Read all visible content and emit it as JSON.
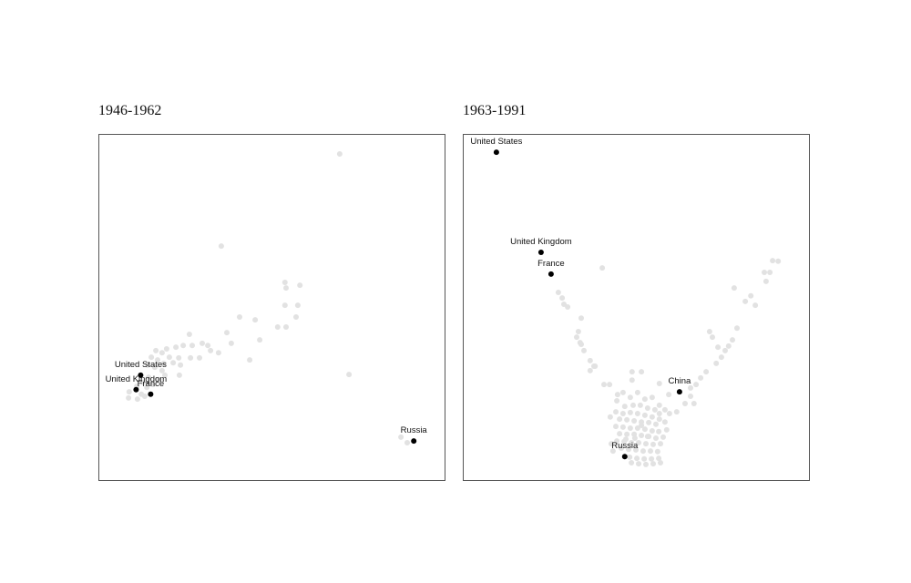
{
  "chart_data": [
    {
      "type": "scatter",
      "title": "1946-1962",
      "xlim": [
        0,
        100
      ],
      "ylim": [
        0,
        100
      ],
      "grid": false,
      "background_color": "#e2e2e2",
      "highlight_color": "#000000",
      "highlighted": [
        {
          "label": "United States",
          "x": 12.2,
          "y": 30.3
        },
        {
          "label": "United Kingdom",
          "x": 10.9,
          "y": 26.1
        },
        {
          "label": "France",
          "x": 15.1,
          "y": 24.8
        },
        {
          "label": "Russia",
          "x": 91.1,
          "y": 11.3
        }
      ],
      "background_points": [
        [
          69.7,
          94.2
        ],
        [
          35.5,
          67.6
        ],
        [
          53.9,
          57.1
        ],
        [
          54.2,
          55.5
        ],
        [
          58.2,
          56.3
        ],
        [
          53.9,
          50.5
        ],
        [
          57.6,
          50.5
        ],
        [
          40.8,
          47.1
        ],
        [
          45.3,
          46.3
        ],
        [
          57.1,
          47.1
        ],
        [
          51.8,
          44.2
        ],
        [
          54.2,
          44.2
        ],
        [
          37.1,
          42.6
        ],
        [
          46.6,
          40.5
        ],
        [
          26.3,
          42.1
        ],
        [
          38.4,
          39.5
        ],
        [
          24.5,
          38.9
        ],
        [
          27.1,
          38.9
        ],
        [
          30.0,
          39.5
        ],
        [
          31.6,
          38.9
        ],
        [
          19.7,
          37.9
        ],
        [
          22.4,
          38.4
        ],
        [
          32.4,
          37.4
        ],
        [
          34.7,
          36.8
        ],
        [
          16.6,
          37.4
        ],
        [
          18.4,
          36.8
        ],
        [
          20.5,
          35.5
        ],
        [
          23.2,
          35.3
        ],
        [
          26.6,
          35.3
        ],
        [
          29.2,
          35.3
        ],
        [
          15.3,
          35.5
        ],
        [
          17.1,
          34.7
        ],
        [
          18.9,
          33.7
        ],
        [
          21.6,
          33.9
        ],
        [
          23.7,
          33.2
        ],
        [
          14.2,
          33.2
        ],
        [
          16.3,
          32.6
        ],
        [
          18.4,
          31.6
        ],
        [
          19.2,
          30.3
        ],
        [
          23.4,
          30.3
        ],
        [
          14.5,
          29.7
        ],
        [
          17.4,
          29.0
        ],
        [
          12.9,
          28.2
        ],
        [
          15.8,
          27.6
        ],
        [
          11.1,
          27.1
        ],
        [
          14.0,
          26.8
        ],
        [
          8.9,
          25.5
        ],
        [
          12.4,
          24.8
        ],
        [
          8.7,
          23.7
        ],
        [
          11.3,
          23.4
        ],
        [
          13.4,
          24.2
        ],
        [
          43.7,
          34.7
        ],
        [
          72.4,
          30.5
        ],
        [
          87.4,
          12.4
        ],
        [
          89.2,
          10.8
        ]
      ]
    },
    {
      "type": "scatter",
      "title": "1963-1991",
      "xlim": [
        0,
        100
      ],
      "ylim": [
        0,
        100
      ],
      "grid": false,
      "background_color": "#e2e2e2",
      "highlight_color": "#000000",
      "highlighted": [
        {
          "label": "United States",
          "x": 9.7,
          "y": 94.7
        },
        {
          "label": "United Kingdom",
          "x": 22.6,
          "y": 65.8
        },
        {
          "label": "France",
          "x": 25.5,
          "y": 59.5
        },
        {
          "label": "China",
          "x": 62.6,
          "y": 25.5
        },
        {
          "label": "Russia",
          "x": 46.8,
          "y": 6.8
        }
      ],
      "background_points": [
        [
          40.3,
          61.3
        ],
        [
          27.6,
          54.2
        ],
        [
          28.7,
          52.6
        ],
        [
          29.2,
          50.8
        ],
        [
          30.3,
          50.0
        ],
        [
          34.2,
          46.8
        ],
        [
          33.4,
          42.9
        ],
        [
          32.9,
          41.3
        ],
        [
          33.9,
          39.7
        ],
        [
          35.0,
          37.4
        ],
        [
          34.2,
          39.2
        ],
        [
          36.8,
          34.5
        ],
        [
          38.2,
          32.9
        ],
        [
          36.8,
          31.6
        ],
        [
          37.9,
          32.9
        ],
        [
          40.8,
          27.6
        ],
        [
          42.4,
          27.6
        ],
        [
          48.9,
          31.3
        ],
        [
          51.6,
          31.3
        ],
        [
          56.8,
          27.9
        ],
        [
          65.8,
          26.6
        ],
        [
          67.4,
          27.6
        ],
        [
          68.7,
          29.5
        ],
        [
          70.3,
          31.3
        ],
        [
          73.2,
          33.7
        ],
        [
          74.7,
          35.5
        ],
        [
          75.8,
          37.4
        ],
        [
          76.8,
          38.7
        ],
        [
          77.9,
          40.5
        ],
        [
          79.2,
          43.9
        ],
        [
          71.3,
          42.9
        ],
        [
          72.1,
          41.3
        ],
        [
          78.4,
          55.5
        ],
        [
          81.6,
          51.6
        ],
        [
          83.2,
          53.2
        ],
        [
          84.5,
          50.5
        ],
        [
          87.6,
          57.4
        ],
        [
          87.1,
          60.0
        ],
        [
          88.7,
          60.0
        ],
        [
          89.5,
          63.4
        ],
        [
          91.1,
          63.2
        ],
        [
          73.7,
          38.4
        ],
        [
          65.8,
          24.2
        ],
        [
          64.2,
          22.1
        ],
        [
          66.8,
          22.1
        ],
        [
          59.5,
          24.7
        ],
        [
          58.4,
          20.3
        ],
        [
          56.8,
          19.2
        ],
        [
          59.7,
          19.2
        ],
        [
          61.8,
          19.7
        ],
        [
          48.9,
          28.9
        ],
        [
          46.3,
          25.3
        ],
        [
          48.4,
          23.9
        ],
        [
          50.5,
          25.3
        ],
        [
          52.6,
          23.4
        ],
        [
          54.7,
          23.9
        ],
        [
          56.8,
          21.6
        ],
        [
          44.5,
          22.9
        ],
        [
          46.8,
          21.3
        ],
        [
          49.2,
          21.6
        ],
        [
          51.3,
          21.6
        ],
        [
          53.4,
          20.8
        ],
        [
          55.5,
          20.3
        ],
        [
          44.2,
          19.7
        ],
        [
          46.3,
          19.2
        ],
        [
          48.4,
          19.5
        ],
        [
          50.5,
          19.2
        ],
        [
          52.6,
          18.7
        ],
        [
          54.7,
          18.2
        ],
        [
          56.8,
          17.6
        ],
        [
          45.3,
          17.6
        ],
        [
          47.4,
          17.4
        ],
        [
          49.5,
          17.1
        ],
        [
          51.6,
          16.8
        ],
        [
          53.7,
          16.6
        ],
        [
          55.8,
          16.1
        ],
        [
          44.2,
          15.5
        ],
        [
          46.3,
          15.3
        ],
        [
          48.4,
          15.0
        ],
        [
          50.5,
          15.0
        ],
        [
          52.6,
          14.7
        ],
        [
          54.7,
          14.2
        ],
        [
          56.6,
          14.0
        ],
        [
          45.3,
          13.4
        ],
        [
          47.4,
          13.2
        ],
        [
          49.5,
          13.2
        ],
        [
          51.6,
          12.9
        ],
        [
          53.7,
          12.6
        ],
        [
          55.8,
          12.1
        ],
        [
          57.9,
          12.4
        ],
        [
          44.5,
          11.3
        ],
        [
          46.6,
          11.1
        ],
        [
          48.7,
          10.8
        ],
        [
          50.8,
          10.8
        ],
        [
          52.9,
          10.5
        ],
        [
          55.0,
          10.3
        ],
        [
          57.1,
          10.5
        ],
        [
          45.8,
          9.2
        ],
        [
          47.9,
          8.9
        ],
        [
          50.0,
          8.7
        ],
        [
          52.1,
          8.4
        ],
        [
          54.2,
          8.4
        ],
        [
          56.3,
          8.2
        ],
        [
          48.2,
          6.6
        ],
        [
          50.3,
          6.3
        ],
        [
          52.4,
          6.1
        ],
        [
          54.5,
          6.1
        ],
        [
          56.6,
          6.3
        ],
        [
          48.7,
          5.0
        ],
        [
          50.8,
          4.7
        ],
        [
          52.9,
          4.5
        ],
        [
          55.0,
          4.7
        ],
        [
          57.1,
          5.0
        ],
        [
          43.4,
          8.4
        ],
        [
          42.9,
          10.5
        ],
        [
          58.9,
          14.5
        ],
        [
          58.4,
          16.8
        ],
        [
          44.7,
          24.7
        ],
        [
          42.6,
          18.2
        ],
        [
          51.6,
          15.8
        ],
        [
          49.7,
          12.1
        ],
        [
          53.4,
          12.6
        ],
        [
          47.1,
          11.8
        ]
      ]
    }
  ]
}
